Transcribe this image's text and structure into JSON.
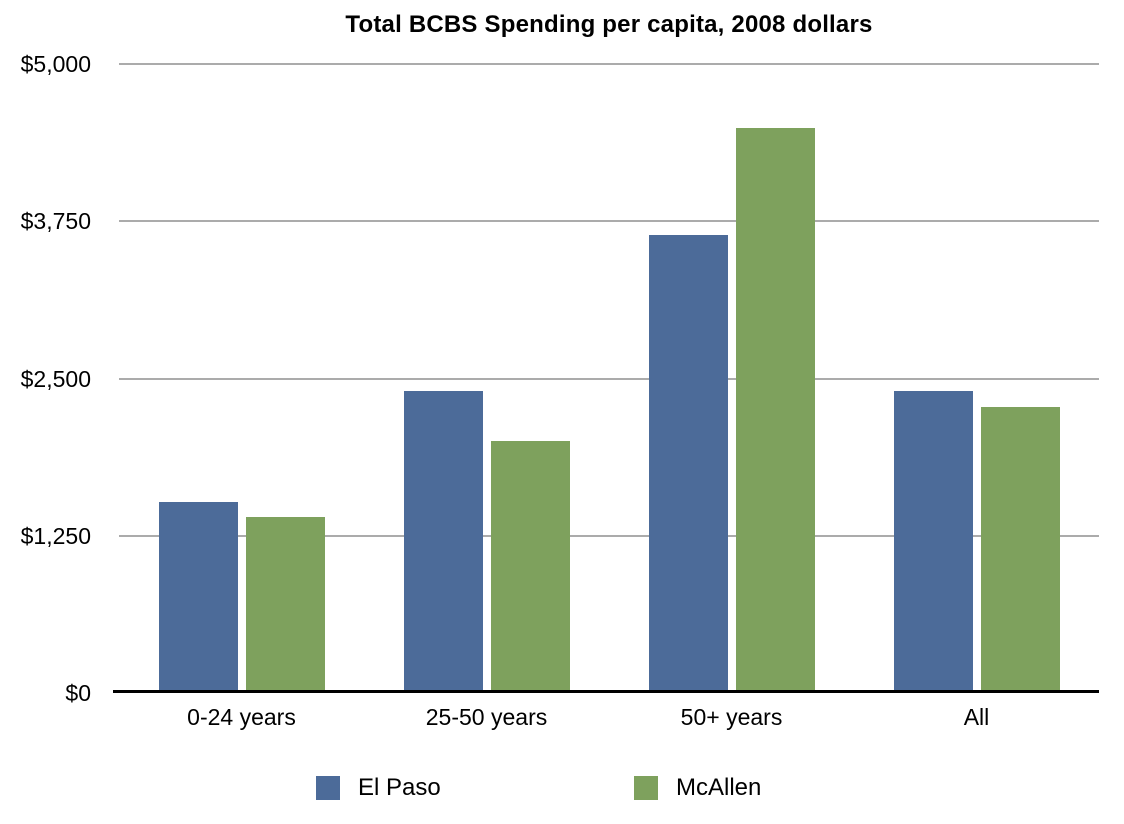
{
  "chart_data": {
    "type": "bar",
    "title": "Total BCBS Spending per capita, 2008 dollars",
    "categories": [
      "0-24 years",
      "25-50 years",
      "50+ years",
      "All"
    ],
    "series": [
      {
        "name": "El Paso",
        "color": "#4c6b99",
        "values": [
          1520,
          2400,
          3640,
          2400
        ]
      },
      {
        "name": "McAllen",
        "color": "#7ea15d",
        "values": [
          1400,
          2000,
          4490,
          2270
        ]
      }
    ],
    "xlabel": "",
    "ylabel": "",
    "ylim": [
      0,
      5000
    ],
    "y_ticks": [
      {
        "value": 0,
        "label": "$0"
      },
      {
        "value": 1250,
        "label": "$1,250"
      },
      {
        "value": 2500,
        "label": "$2,500"
      },
      {
        "value": 3750,
        "label": "$3,750"
      },
      {
        "value": 5000,
        "label": "$5,000"
      }
    ],
    "grid": true,
    "gridline_color": "#ababab",
    "axis_color": "#000000",
    "background_color": "#ffffff",
    "legend_position": "bottom"
  }
}
